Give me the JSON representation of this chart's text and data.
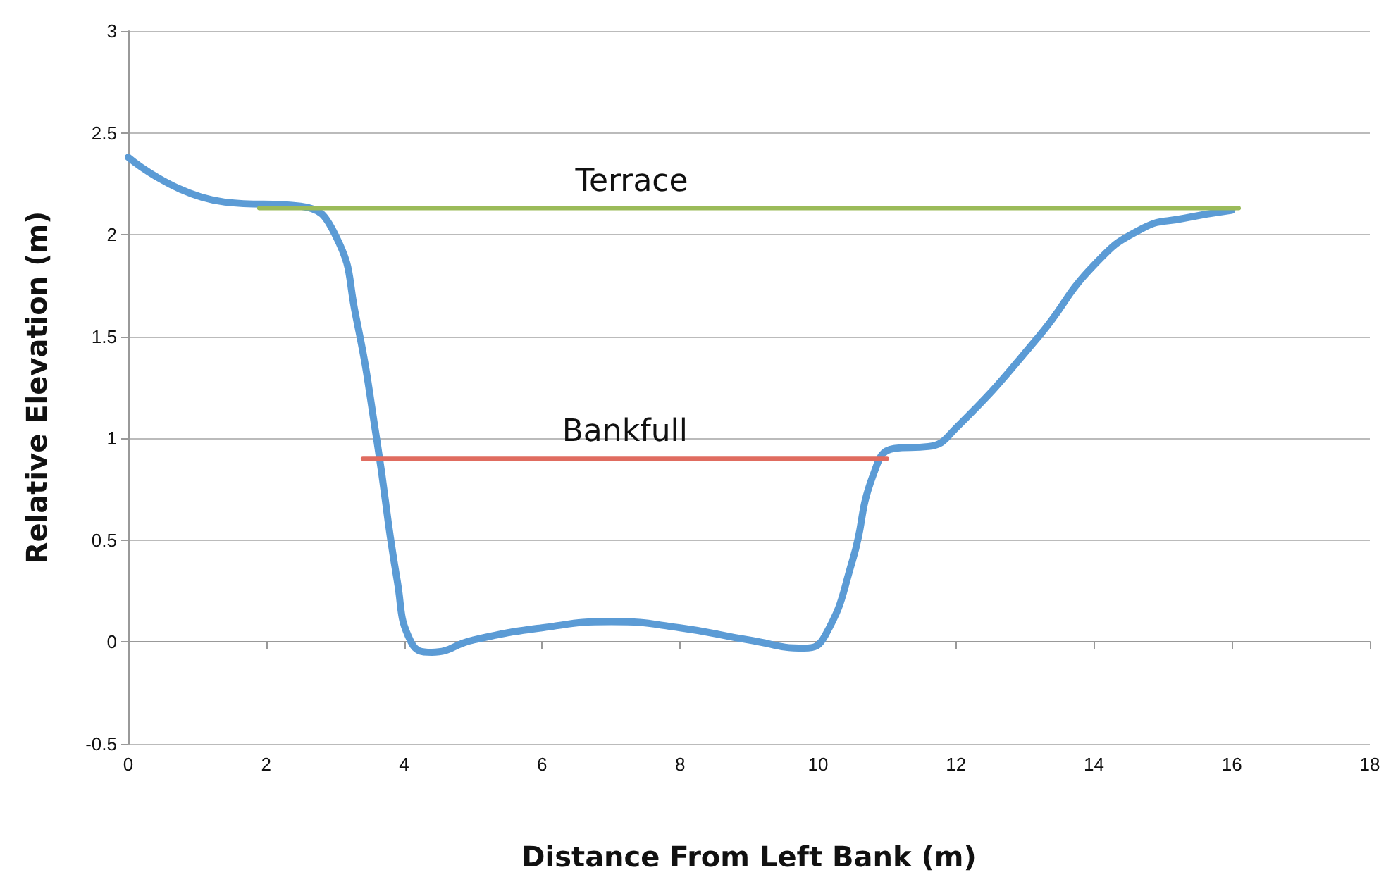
{
  "chart_data": {
    "type": "line",
    "xlabel": "Distance From Left Bank (m)",
    "ylabel": "Relative Elevation (m)",
    "xlim": [
      0,
      18
    ],
    "xticks": [
      0,
      2,
      4,
      6,
      8,
      10,
      12,
      14,
      16,
      18
    ],
    "ylim": [
      -0.5,
      3
    ],
    "yticks": [
      -0.5,
      0,
      0.5,
      1,
      1.5,
      2,
      2.5,
      3
    ],
    "grid": "y",
    "legend": false,
    "marker": "none",
    "line_style": "solid",
    "series": [
      {
        "color": "#5b9bd5",
        "x": [
          0,
          1.4,
          2.5,
          3.0,
          3.3,
          3.6,
          3.9,
          4.1,
          4.4,
          5.0,
          6,
          7,
          8,
          9,
          9.8,
          10.1,
          10.5,
          10.8,
          11.1,
          11.6,
          12,
          13.2,
          14.0,
          14.7,
          15.3,
          16
        ],
        "values": [
          2.38,
          2.16,
          2.14,
          2.0,
          1.6,
          1.0,
          0.3,
          0.0,
          -0.05,
          0.01,
          0.07,
          0.1,
          0.07,
          0.01,
          -0.03,
          0.03,
          0.4,
          0.82,
          0.95,
          0.96,
          1.05,
          1.5,
          1.85,
          2.03,
          2.08,
          2.12
        ]
      },
      {
        "name": "Terrace",
        "color": "#9bbb59",
        "x": [
          1.9,
          7.3,
          16.1
        ],
        "values": [
          2.13,
          2.13,
          2.13
        ]
      },
      {
        "name": "Bankfull",
        "color": "#e06c60",
        "x": [
          3.4,
          7.2,
          11.0
        ],
        "values": [
          0.9,
          0.9,
          0.9
        ]
      }
    ]
  }
}
